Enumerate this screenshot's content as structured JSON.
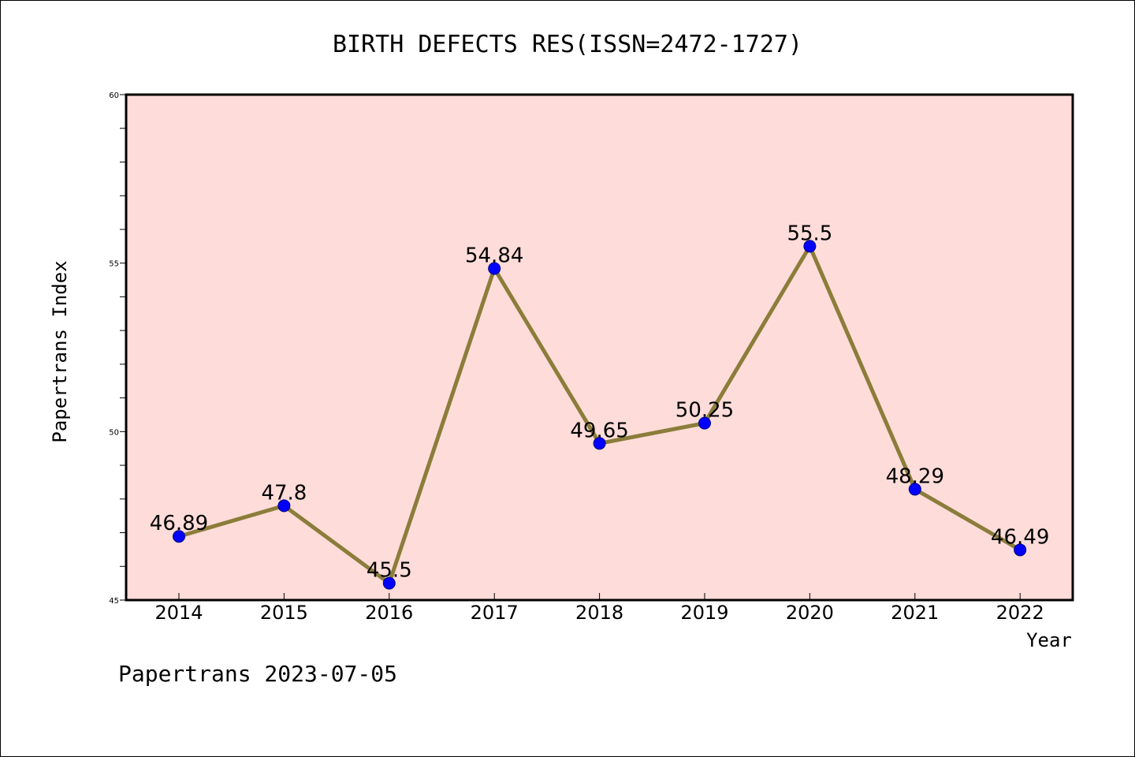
{
  "chart_data": {
    "type": "line",
    "title": "BIRTH DEFECTS RES(ISSN=2472-1727)",
    "xlabel": "Year",
    "ylabel": "Papertrans Index",
    "categories": [
      "2014",
      "2015",
      "2016",
      "2017",
      "2018",
      "2019",
      "2020",
      "2021",
      "2022"
    ],
    "series": [
      {
        "values": [
          46.89,
          47.8,
          45.5,
          54.84,
          49.65,
          50.25,
          55.5,
          48.29,
          46.49
        ],
        "line_color": "#8B7D3A",
        "marker_color": "#0000FF"
      }
    ],
    "data_labels": [
      "46.89",
      "47.8",
      "45.5",
      "54.84",
      "49.65",
      "50.25",
      "55.5",
      "48.29",
      "46.49"
    ],
    "ylim": [
      45,
      60
    ],
    "yticks": [
      "45",
      "50",
      "55",
      "60"
    ],
    "plot_background": "#FDDCD9",
    "grid": false,
    "legend": "none"
  },
  "footer": "Papertrans 2023-07-05"
}
